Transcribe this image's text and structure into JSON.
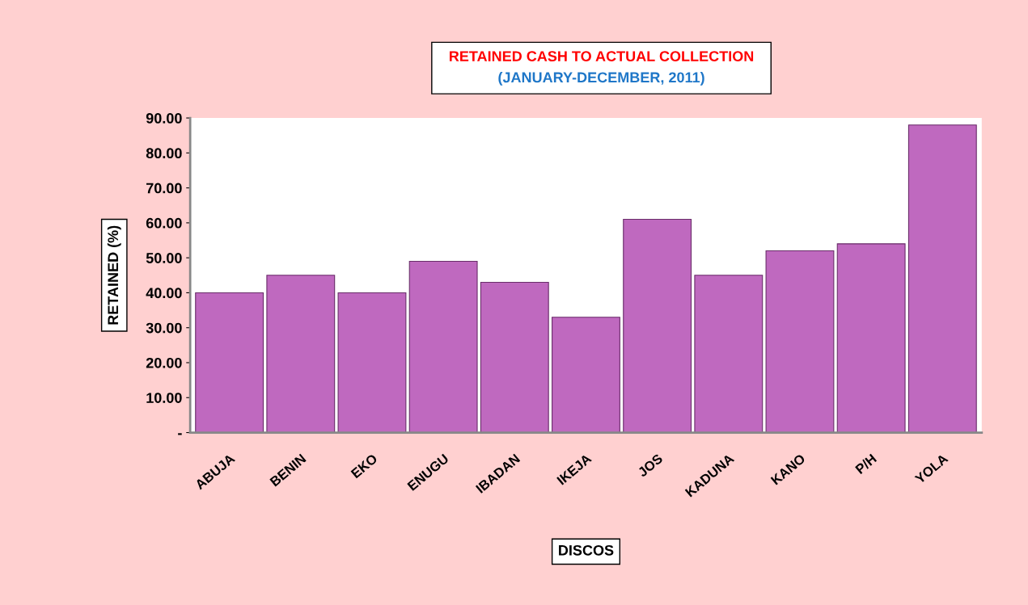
{
  "chart_data": {
    "type": "bar",
    "title": "RETAINED CASH TO ACTUAL COLLECTION",
    "subtitle": "(JANUARY-DECEMBER, 2011)",
    "xlabel": "DISCOS",
    "ylabel": "RETAINED (%)",
    "categories": [
      "ABUJA",
      "BENIN",
      "EKO",
      "ENUGU",
      "IBADAN",
      "IKEJA",
      "JOS",
      "KADUNA",
      "KANO",
      "P/H",
      "YOLA"
    ],
    "values": [
      40,
      45,
      40,
      49,
      43,
      33,
      61,
      45,
      52,
      54,
      88
    ],
    "color": "#bf69bf",
    "ylim": [
      0,
      90
    ],
    "yticks": [
      {
        "value": 0,
        "label": "-"
      },
      {
        "value": 10,
        "label": "10.00"
      },
      {
        "value": 20,
        "label": "20.00"
      },
      {
        "value": 30,
        "label": "30.00"
      },
      {
        "value": 40,
        "label": "40.00"
      },
      {
        "value": 50,
        "label": "50.00"
      },
      {
        "value": 60,
        "label": "60.00"
      },
      {
        "value": 70,
        "label": "70.00"
      },
      {
        "value": 80,
        "label": "80.00"
      },
      {
        "value": 90,
        "label": "90.00"
      }
    ],
    "grid": false,
    "legend": false
  }
}
